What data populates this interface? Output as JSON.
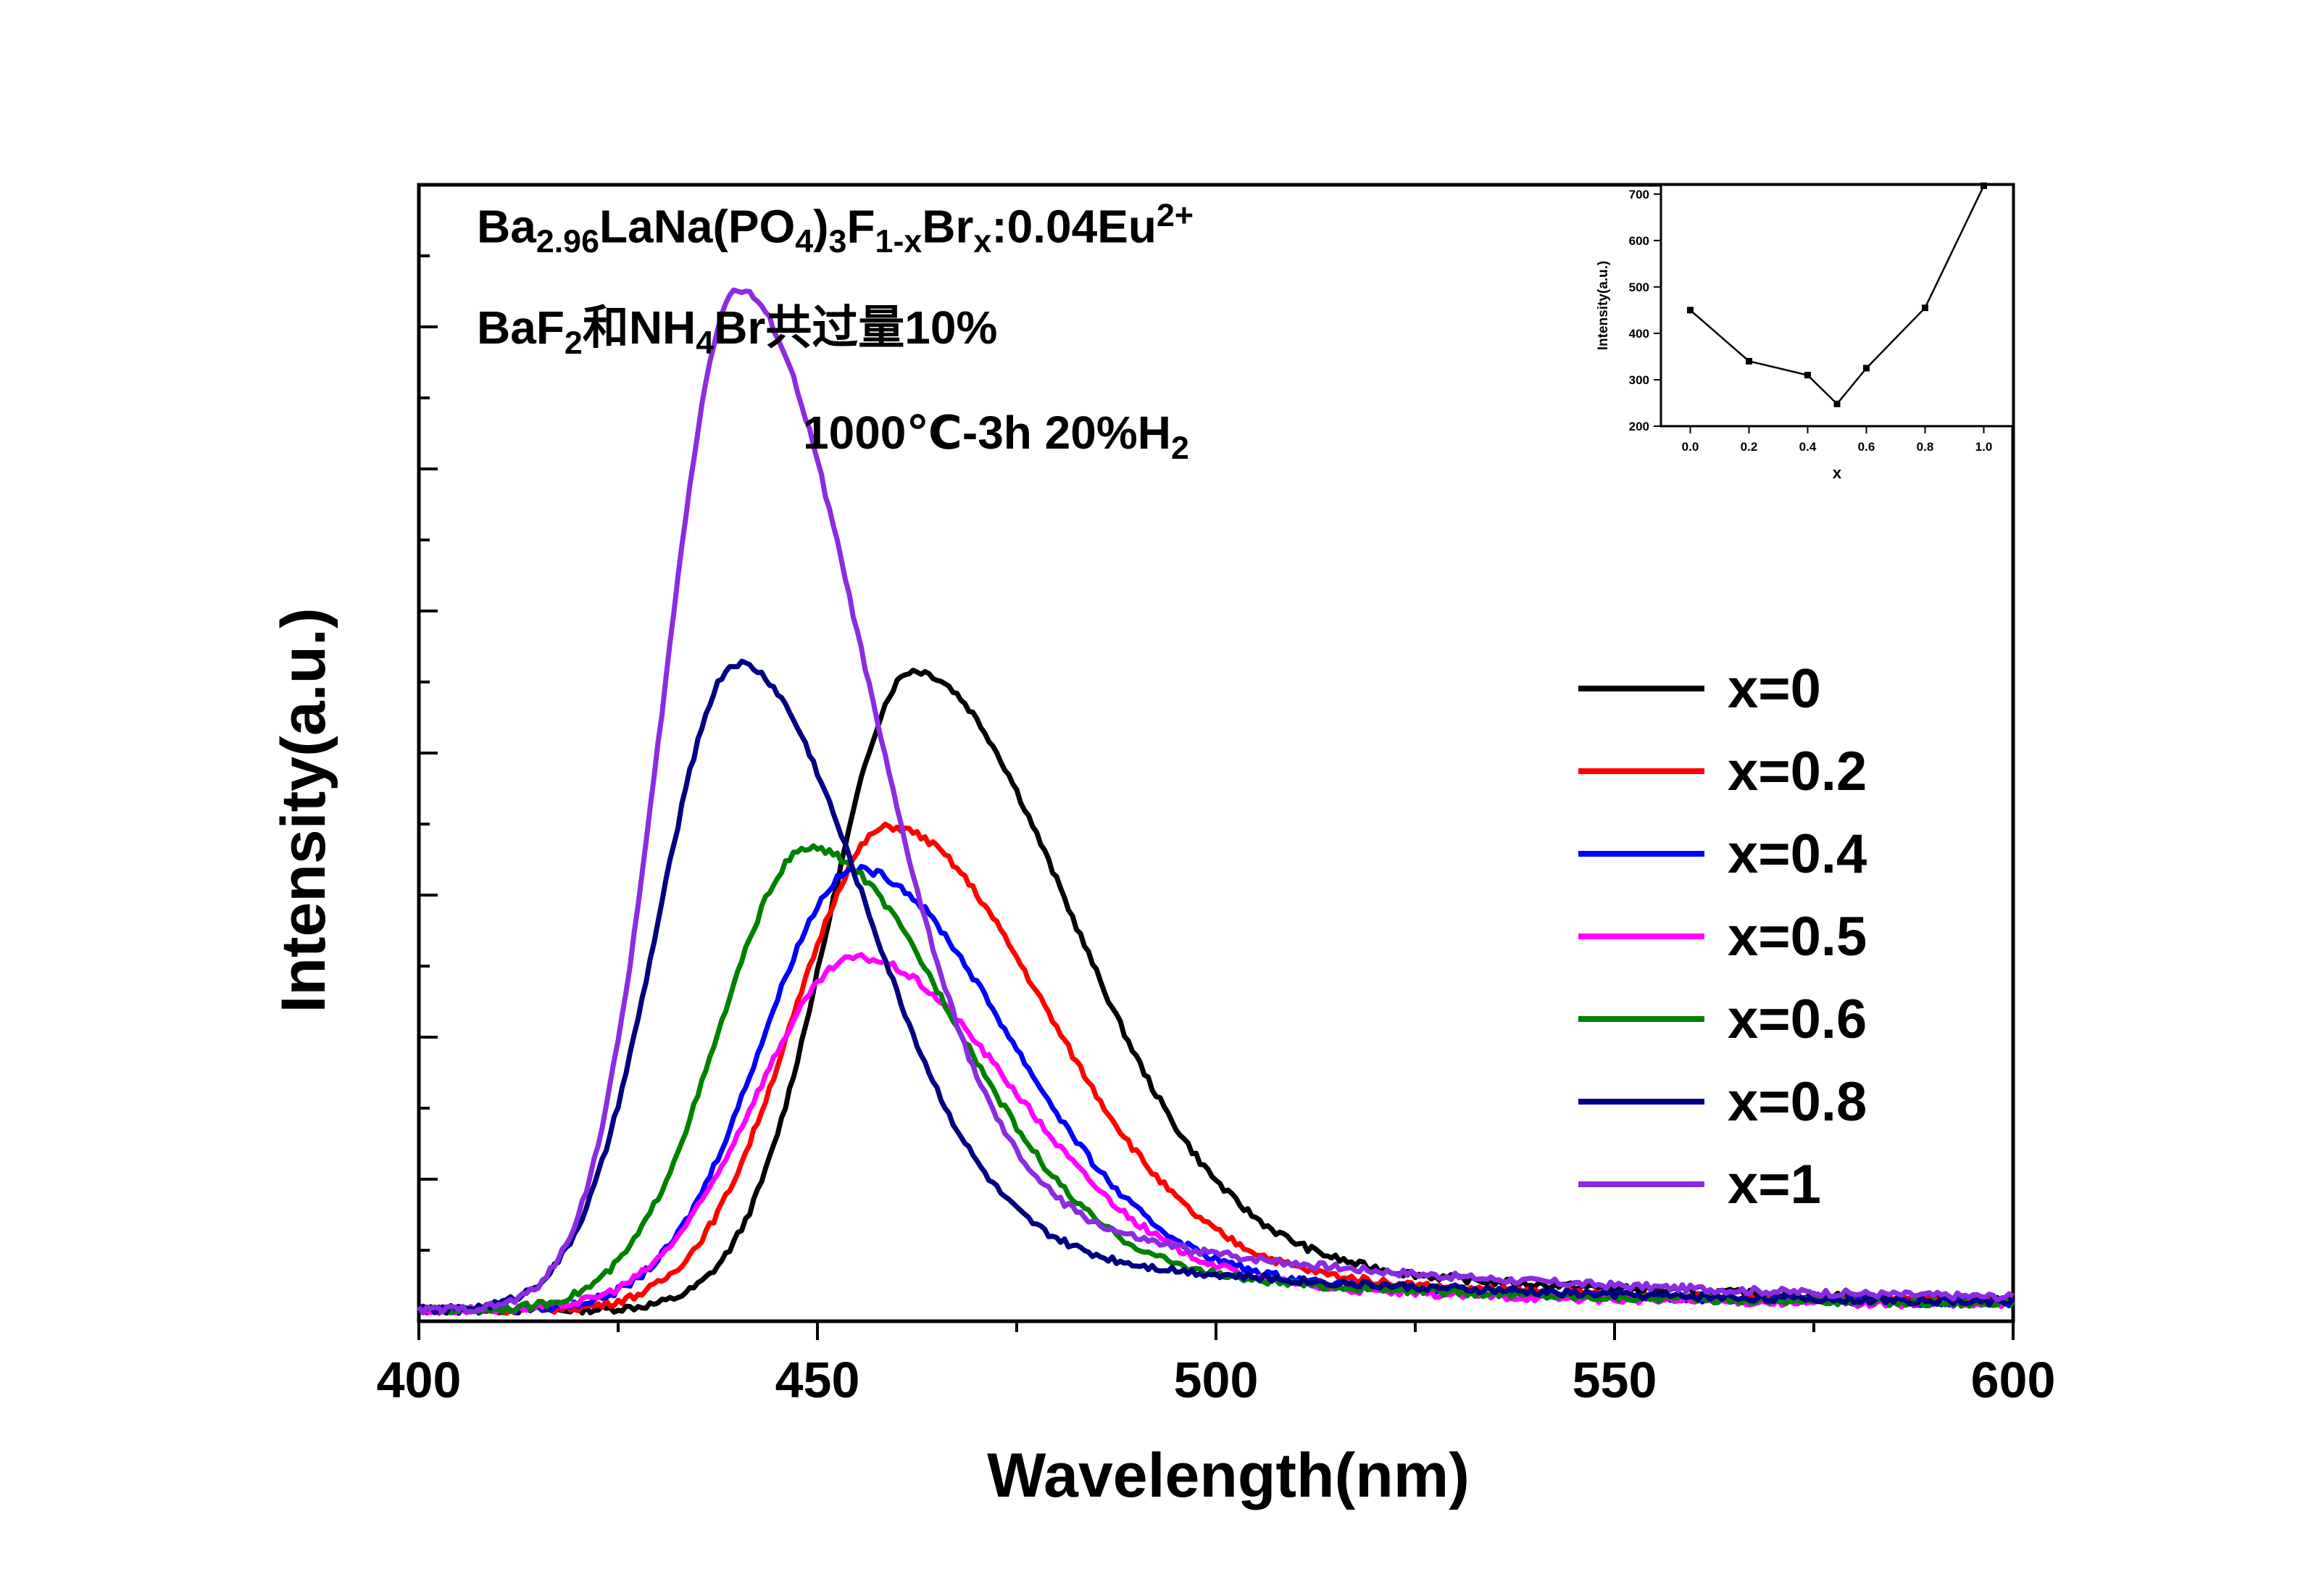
{
  "chart_data": [
    {
      "type": "line",
      "xlabel": "Wavelength(nm)",
      "ylabel": "Intensity(a.u.)",
      "xlim": [
        400,
        600
      ],
      "ylim": [
        0,
        800
      ],
      "x_ticks": [
        "400",
        "450",
        "500",
        "550",
        "600"
      ],
      "y_tick_labels_shown": false,
      "legend_position": "right",
      "annotations": {
        "formula": {
          "a": "Ba",
          "b": "2.96",
          "c": "LaNa(PO",
          "d": "4",
          "e": ")",
          "f": "3",
          "g": "F",
          "h": "1-x",
          "i": "Br",
          "j": "x",
          "k": ":0.04Eu",
          "l": "2+"
        },
        "flux": {
          "a": "BaF",
          "b": "2",
          "c": "和NH",
          "d": "4",
          "e": "Br共过量10%"
        },
        "condition": {
          "a": "1000℃-3h  20%H",
          "b": "2"
        }
      },
      "series": [
        {
          "name": "x=0",
          "color": "#000000",
          "peak_x": 462,
          "peak_y": 450,
          "w_left": 15,
          "w_right": 27,
          "tail": 55
        },
        {
          "name": "x=0.2",
          "color": "#ff0000",
          "peak_x": 459,
          "peak_y": 340,
          "w_left": 17,
          "w_right": 27,
          "tail": 55
        },
        {
          "name": "x=0.4",
          "color": "#0000ff",
          "peak_x": 455,
          "peak_y": 310,
          "w_left": 17,
          "w_right": 26,
          "tail": 55
        },
        {
          "name": "x=0.5",
          "color": "#ff00ff",
          "peak_x": 455,
          "peak_y": 248,
          "w_left": 18,
          "w_right": 27,
          "tail": 55
        },
        {
          "name": "x=0.6",
          "color": "#008000",
          "peak_x": 449,
          "peak_y": 325,
          "w_left": 16,
          "w_right": 25,
          "tail": 55
        },
        {
          "name": "x=0.8",
          "color": "#000080",
          "peak_x": 440,
          "peak_y": 455,
          "w_left": 14,
          "w_right": 22,
          "tail": 55
        },
        {
          "name": "x=1",
          "color": "#8b2be2",
          "peak_x": 440,
          "peak_y": 718,
          "w_left": 13,
          "w_right": 22,
          "tail": 55
        }
      ]
    },
    {
      "type": "line",
      "xlabel": "x",
      "ylabel": "Intensity(a.u.)",
      "xlim": [
        -0.1,
        1.1
      ],
      "ylim": [
        200,
        720
      ],
      "x_ticks": [
        "0.0",
        "0.2",
        "0.4",
        "0.6",
        "0.8",
        "1.0"
      ],
      "y_ticks": [
        "200",
        "300",
        "400",
        "500",
        "600",
        "700"
      ],
      "x": [
        0.0,
        0.2,
        0.4,
        0.5,
        0.6,
        0.8,
        1.0
      ],
      "y": [
        450,
        340,
        310,
        248,
        325,
        455,
        718
      ],
      "color": "#000000"
    }
  ]
}
